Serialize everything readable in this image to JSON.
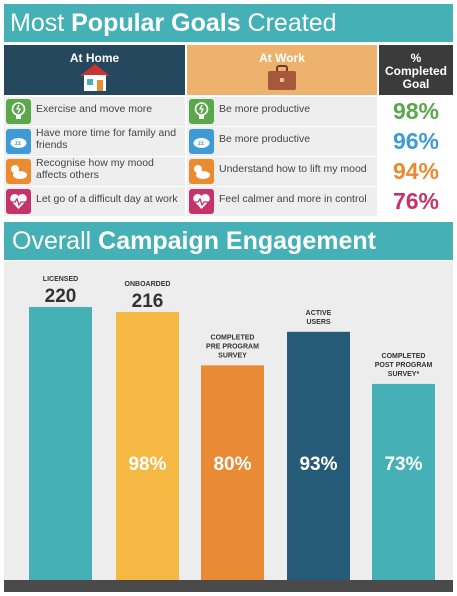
{
  "goals": {
    "title_part1": "Most ",
    "title_bold": "Popular Goals",
    "title_part2": " Created",
    "headers": {
      "home": "At Home",
      "work": "At Work",
      "pct_line1": "%",
      "pct_line2": "Completed",
      "pct_line3": "Goal"
    },
    "rows": [
      {
        "icon": "lightbulb-icon",
        "icon_color": "#5aa84a",
        "home": "Exercise and move more",
        "work": "Be more productive",
        "pct": "98%",
        "pct_color": "#5aa84a"
      },
      {
        "icon": "sleep-cloud-icon",
        "icon_color": "#3f9bd5",
        "home": "Have more time for family and friends",
        "work": "Be more productive",
        "pct": "96%",
        "pct_color": "#3f9bd5"
      },
      {
        "icon": "sun-cloud-icon",
        "icon_color": "#ec8a30",
        "home": "Recognise how my mood affects others",
        "work": "Understand how to lift my mood",
        "pct": "94%",
        "pct_color": "#ec8a30"
      },
      {
        "icon": "heart-pulse-icon",
        "icon_color": "#c6336a",
        "home": "Let go of a difficult day at work",
        "work": "Feel calmer and more in control",
        "pct": "76%",
        "pct_color": "#c6336a"
      }
    ]
  },
  "engagement": {
    "title_part1": "Overall ",
    "title_bold": "Campaign Engagement"
  },
  "chart_data": {
    "type": "bar",
    "categories": [
      "LICENSED",
      "ONBOARDED",
      "COMPLETED PRE PROGRAM SURVEY",
      "ACTIVE USERS",
      "COMPLETED POST PROGRAM SURVEY*"
    ],
    "category_lines": [
      [
        "LICENSED"
      ],
      [
        "ONBOARDED"
      ],
      [
        "COMPLETED",
        "PRE PROGRAM",
        "SURVEY"
      ],
      [
        "ACTIVE",
        "USERS"
      ],
      [
        "COMPLETED",
        "POST PROGRAM",
        "SURVEY*"
      ]
    ],
    "values": [
      220,
      216,
      173,
      200,
      158
    ],
    "value_labels": [
      "220",
      "216",
      "",
      "",
      ""
    ],
    "percent_labels": [
      "",
      "98%",
      "80%",
      "93%",
      "73%"
    ],
    "colors": [
      "#45b0b6",
      "#f4b843",
      "#e98a34",
      "#265b78",
      "#45b0b6"
    ],
    "ylim": [
      0,
      220
    ],
    "title": "Overall Campaign Engagement",
    "xlabel": "",
    "ylabel": ""
  }
}
